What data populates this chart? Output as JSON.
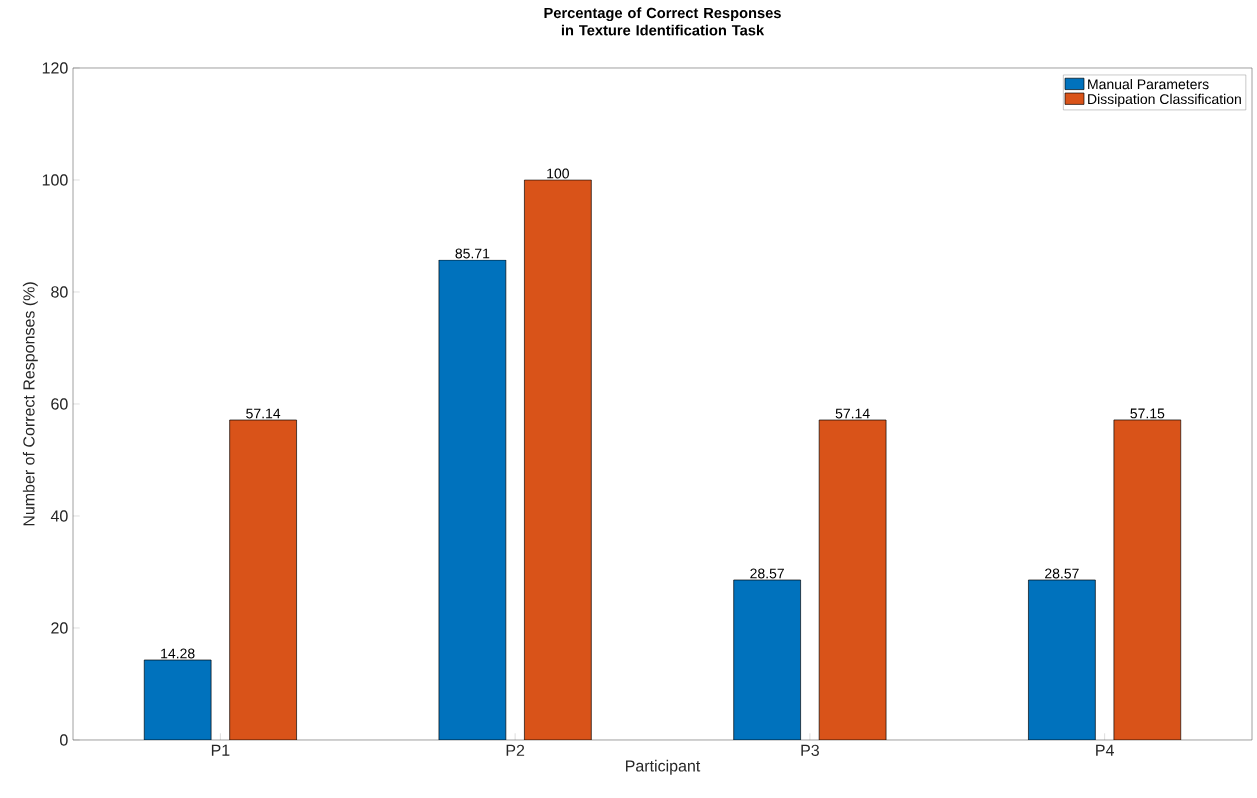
{
  "chart_data": {
    "type": "bar",
    "title": "Percentage of Correct Responses in Texture Identification Task",
    "xlabel": "Participant",
    "ylabel": "Number of Correct Responses (%)",
    "categories": [
      "P1",
      "P2",
      "P3",
      "P4"
    ],
    "series": [
      {
        "name": "Manual Parameters",
        "color": "#0072bd",
        "values": [
          14.28,
          85.71,
          28.57,
          28.57
        ]
      },
      {
        "name": "Dissipation Classification",
        "color": "#d95319",
        "values": [
          57.14,
          100,
          57.14,
          57.15
        ]
      }
    ],
    "ylim": [
      0,
      120
    ],
    "yticks": [
      0,
      20,
      40,
      60,
      80,
      100,
      120
    ],
    "data_labels": true,
    "legend": "top right"
  }
}
